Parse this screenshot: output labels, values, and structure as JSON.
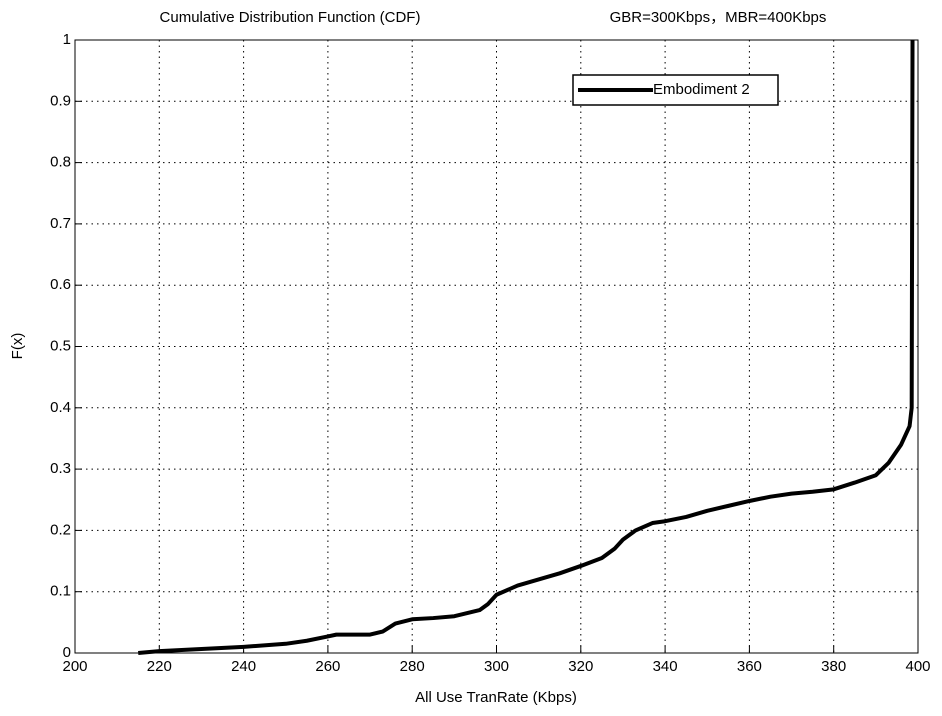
{
  "chart_data": {
    "type": "line",
    "title": "Cumulative Distribution Function (CDF)",
    "subtitle": "GBR=300Kbps，MBR=400Kbps",
    "x_label": "All Use TranRate (Kbps)",
    "y_label": "F(x)",
    "x": [
      215,
      220,
      240,
      250,
      255,
      260,
      262,
      270,
      273,
      276,
      280,
      285,
      290,
      296,
      298,
      300,
      305,
      310,
      315,
      320,
      325,
      328,
      330,
      333,
      337,
      340,
      345,
      350,
      355,
      360,
      365,
      370,
      375,
      380,
      385,
      390,
      393,
      396,
      398,
      398.5,
      398.7
    ],
    "series": [
      {
        "name": "Embodiment 2",
        "color": "#000000",
        "values": [
          0,
          0.003,
          0.01,
          0.015,
          0.02,
          0.027,
          0.03,
          0.03,
          0.035,
          0.048,
          0.055,
          0.057,
          0.06,
          0.07,
          0.08,
          0.095,
          0.11,
          0.12,
          0.13,
          0.142,
          0.155,
          0.17,
          0.185,
          0.2,
          0.212,
          0.215,
          0.222,
          0.232,
          0.24,
          0.248,
          0.255,
          0.26,
          0.263,
          0.267,
          0.278,
          0.29,
          0.31,
          0.34,
          0.37,
          0.4,
          1
        ]
      }
    ],
    "xlim": [
      200,
      400
    ],
    "xticks": [
      200,
      220,
      240,
      260,
      280,
      300,
      320,
      340,
      360,
      380,
      400
    ],
    "ylim": [
      0,
      1
    ],
    "yticks": [
      0,
      0.1,
      0.2,
      0.3,
      0.4,
      0.5,
      0.6,
      0.7,
      0.8,
      0.9,
      1
    ],
    "grid": true,
    "legend": "upper right"
  }
}
